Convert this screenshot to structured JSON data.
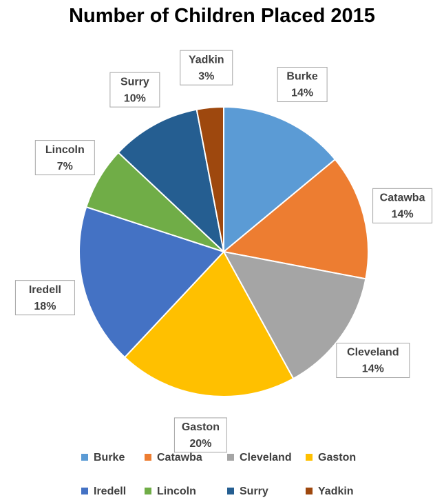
{
  "chart_data": {
    "type": "pie",
    "title": "Number of Children Placed 2015",
    "categories": [
      "Burke",
      "Catawba",
      "Cleveland",
      "Gaston",
      "Iredell",
      "Lincoln",
      "Surry",
      "Yadkin"
    ],
    "values": [
      14,
      14,
      14,
      20,
      18,
      7,
      10,
      3
    ],
    "value_labels": [
      "14%",
      "14%",
      "14%",
      "20%",
      "18%",
      "7%",
      "10%",
      "3%"
    ],
    "colors": [
      "#5b9bd5",
      "#ed7d31",
      "#a5a5a5",
      "#ffc000",
      "#4472c4",
      "#70ad47",
      "#255e91",
      "#9e480e"
    ],
    "legend": "bottom"
  }
}
